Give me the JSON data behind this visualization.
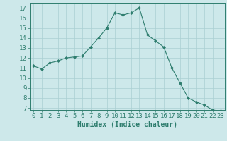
{
  "x": [
    0,
    1,
    2,
    3,
    4,
    5,
    6,
    7,
    8,
    9,
    10,
    11,
    12,
    13,
    14,
    15,
    16,
    17,
    18,
    19,
    20,
    21,
    22,
    23
  ],
  "y": [
    11.2,
    10.9,
    11.5,
    11.7,
    12.0,
    12.1,
    12.2,
    13.1,
    14.0,
    15.0,
    16.5,
    16.3,
    16.5,
    17.0,
    14.3,
    13.7,
    13.1,
    11.0,
    9.5,
    8.0,
    7.6,
    7.3,
    6.8,
    6.7
  ],
  "line_color": "#2e7d6e",
  "marker": "D",
  "marker_size": 2.0,
  "bg_color": "#cde8ea",
  "grid_color": "#aacfd2",
  "xlabel": "Humidex (Indice chaleur)",
  "xlim": [
    -0.5,
    23.5
  ],
  "ylim": [
    6.8,
    17.5
  ],
  "yticks": [
    7,
    8,
    9,
    10,
    11,
    12,
    13,
    14,
    15,
    16,
    17
  ],
  "xticks": [
    0,
    1,
    2,
    3,
    4,
    5,
    6,
    7,
    8,
    9,
    10,
    11,
    12,
    13,
    14,
    15,
    16,
    17,
    18,
    19,
    20,
    21,
    22,
    23
  ],
  "tick_color": "#2e7d6e",
  "label_color": "#2e7d6e",
  "font_size": 6.5,
  "xlabel_font_size": 7.0
}
